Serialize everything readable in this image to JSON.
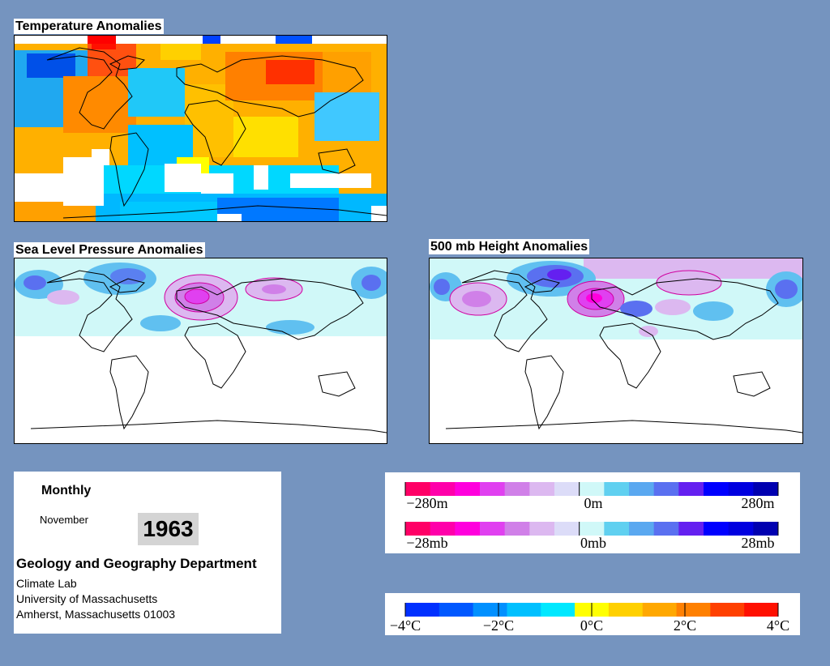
{
  "panels": {
    "temperature": {
      "title": "Temperature Anomalies"
    },
    "slp": {
      "title": "Sea Level Pressure Anomalies"
    },
    "height500": {
      "title": "500 mb Height Anomalies"
    }
  },
  "info": {
    "period": "Monthly",
    "month": "November",
    "year": "1963",
    "department": "Geology and Geography Department",
    "lab": "Climate Lab",
    "university": "University of Massachusetts",
    "address": "Amherst, Massachusetts 01003"
  },
  "legends": {
    "height": {
      "labels": [
        "−280m",
        "0m",
        "280m"
      ],
      "colors": [
        "#ff0066",
        "#ff00aa",
        "#ff00dd",
        "#e040f0",
        "#d080e8",
        "#dcb8f0",
        "#dcdcf8",
        "#d0f8f8",
        "#60d0f0",
        "#5aa8f0",
        "#5a70f0",
        "#6420f0",
        "#0000ff",
        "#0000e0",
        "#0000b0"
      ]
    },
    "pressure": {
      "labels": [
        "−28mb",
        "0mb",
        "28mb"
      ],
      "colors": [
        "#ff0066",
        "#ff00aa",
        "#ff00dd",
        "#e040f0",
        "#d080e8",
        "#dcb8f0",
        "#dcdcf8",
        "#d0f8f8",
        "#60d0f0",
        "#5aa8f0",
        "#5a70f0",
        "#6420f0",
        "#0000ff",
        "#0000e0",
        "#0000b0"
      ]
    },
    "temperature": {
      "labels": [
        "−4°C",
        "−2°C",
        "0°C",
        "2°C",
        "4°C"
      ],
      "colors": [
        "#0030ff",
        "#0058ff",
        "#0090ff",
        "#00c0ff",
        "#00e8ff",
        "#ffff00",
        "#ffd000",
        "#ffa800",
        "#ff8000",
        "#ff4000",
        "#ff1000"
      ]
    }
  }
}
